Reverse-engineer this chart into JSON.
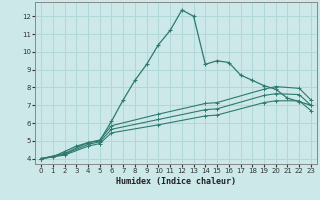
{
  "bg_color": "#cce8e8",
  "line_color": "#2d7a6e",
  "grid_color": "#b0d8d8",
  "xlabel": "Humidex (Indice chaleur)",
  "xlim": [
    -0.5,
    23.5
  ],
  "ylim": [
    3.7,
    12.8
  ],
  "xticks": [
    0,
    1,
    2,
    3,
    4,
    5,
    6,
    7,
    8,
    9,
    10,
    11,
    12,
    13,
    14,
    15,
    16,
    17,
    18,
    19,
    20,
    21,
    22,
    23
  ],
  "yticks": [
    4,
    5,
    6,
    7,
    8,
    9,
    10,
    11,
    12
  ],
  "curve1_x": [
    0,
    1,
    2,
    3,
    4,
    5,
    6,
    7,
    8,
    9,
    10,
    11,
    12,
    13,
    14,
    15,
    16,
    17,
    18,
    19,
    20,
    21,
    22,
    23
  ],
  "curve1_y": [
    4.0,
    4.1,
    4.4,
    4.7,
    4.9,
    5.0,
    6.1,
    7.3,
    8.4,
    9.3,
    10.4,
    11.2,
    12.35,
    12.0,
    9.3,
    9.5,
    9.4,
    8.7,
    8.4,
    8.1,
    7.9,
    7.4,
    7.2,
    7.0
  ],
  "curve2_x": [
    0,
    2,
    4,
    5,
    6,
    10,
    14,
    15,
    19,
    20,
    22,
    23
  ],
  "curve2_y": [
    4.0,
    4.3,
    4.9,
    5.05,
    5.85,
    6.5,
    7.1,
    7.15,
    7.9,
    8.05,
    7.95,
    7.3
  ],
  "curve3_x": [
    0,
    2,
    4,
    5,
    6,
    10,
    14,
    15,
    19,
    20,
    22,
    23
  ],
  "curve3_y": [
    4.0,
    4.25,
    4.8,
    4.95,
    5.65,
    6.2,
    6.75,
    6.8,
    7.55,
    7.65,
    7.6,
    7.0
  ],
  "curve4_x": [
    0,
    2,
    4,
    5,
    6,
    10,
    14,
    15,
    19,
    20,
    22,
    23
  ],
  "curve4_y": [
    4.0,
    4.2,
    4.7,
    4.85,
    5.45,
    5.9,
    6.4,
    6.45,
    7.15,
    7.25,
    7.25,
    6.7
  ]
}
